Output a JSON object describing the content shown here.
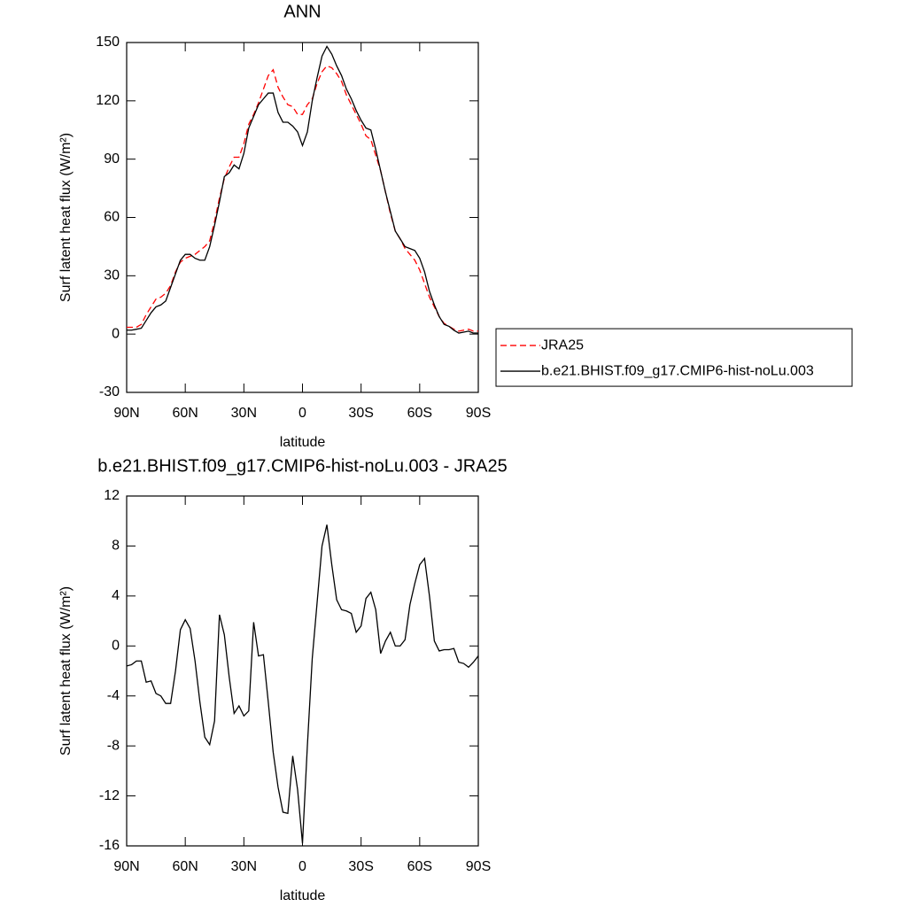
{
  "chart_data": [
    {
      "type": "line",
      "title": "ANN",
      "xlabel": "latitude",
      "ylabel": "Surf latent heat flux (W/m²)",
      "x": [
        90,
        87.5,
        85,
        82.5,
        80,
        77.5,
        75,
        72.5,
        70,
        67.5,
        65,
        62.5,
        60,
        57.5,
        55,
        52.5,
        50,
        47.5,
        45,
        42.5,
        40,
        37.5,
        35,
        32.5,
        30,
        27.5,
        25,
        22.5,
        20,
        17.5,
        15,
        12.5,
        10,
        7.5,
        5,
        2.5,
        0,
        -2.5,
        -5,
        -7.5,
        -10,
        -12.5,
        -15,
        -17.5,
        -20,
        -22.5,
        -25,
        -27.5,
        -30,
        -32.5,
        -35,
        -37.5,
        -40,
        -42.5,
        -45,
        -47.5,
        -50,
        -52.5,
        -55,
        -57.5,
        -60,
        -62.5,
        -65,
        -67.5,
        -70,
        -72.5,
        -75,
        -77.5,
        -80,
        -82.5,
        -85,
        -87.5,
        -90
      ],
      "series": [
        {
          "name": "JRA25",
          "color": "#ff0000",
          "dashed": true,
          "values": [
            3.5,
            3.5,
            3.5,
            5,
            10,
            14,
            18,
            19,
            21,
            25,
            32,
            37,
            39,
            40,
            41,
            43,
            45,
            48,
            58,
            70,
            80,
            86,
            91,
            91,
            98,
            108,
            113,
            119,
            126,
            133,
            136,
            127,
            122,
            118,
            117,
            113,
            113,
            118,
            121,
            129,
            135,
            138,
            137,
            134,
            130,
            123,
            118,
            113,
            108,
            102,
            100,
            92,
            84,
            73,
            62,
            53,
            49,
            44,
            41,
            38,
            33,
            26,
            19,
            14,
            9,
            5.5,
            4,
            2.5,
            1.5,
            2,
            2.5,
            1.5,
            1.5
          ]
        },
        {
          "name": "b.e21.BHIST.f09_g17.CMIP6-hist-noLu.003",
          "color": "#000000",
          "dashed": false,
          "values": [
            2,
            2,
            2.5,
            3,
            7,
            11,
            14,
            15,
            17,
            24,
            31,
            38,
            41,
            41,
            39,
            38,
            38,
            45,
            56,
            68,
            81,
            83,
            87,
            85,
            93,
            106,
            112,
            118,
            121,
            124,
            124,
            114,
            109,
            109,
            107,
            104,
            97,
            104,
            120,
            132,
            143,
            148,
            144,
            138,
            133,
            126,
            121,
            115,
            110,
            106,
            105,
            95,
            84,
            73,
            63,
            53,
            49,
            45,
            44,
            43,
            39,
            32,
            22,
            15,
            9,
            5,
            4,
            2,
            0.5,
            1,
            1.5,
            0.5,
            0.5
          ]
        }
      ],
      "xlim": [
        90,
        -90
      ],
      "xticks": [
        {
          "value": 90,
          "label": "90N"
        },
        {
          "value": 60,
          "label": "60N"
        },
        {
          "value": 30,
          "label": "30N"
        },
        0,
        {
          "value": -30,
          "label": "30S"
        },
        {
          "value": -60,
          "label": "60S"
        },
        {
          "value": -90,
          "label": "90S"
        }
      ],
      "ylim": [
        -30,
        150
      ],
      "yticks": [
        -30,
        0,
        30,
        60,
        90,
        120,
        150
      ],
      "legend": "right"
    },
    {
      "type": "line",
      "title": "b.e21.BHIST.f09_g17.CMIP6-hist-noLu.003 - JRA25",
      "xlabel": "latitude",
      "ylabel": "Surf latent heat flux (W/m²)",
      "x": [
        90,
        87.5,
        85,
        82.5,
        80,
        77.5,
        75,
        72.5,
        70,
        67.5,
        65,
        62.5,
        60,
        57.5,
        55,
        52.5,
        50,
        47.5,
        45,
        42.5,
        40,
        37.5,
        35,
        32.5,
        30,
        27.5,
        25,
        22.5,
        20,
        17.5,
        15,
        12.5,
        10,
        7.5,
        5,
        2.5,
        0,
        -2.5,
        -5,
        -7.5,
        -10,
        -12.5,
        -15,
        -17.5,
        -20,
        -22.5,
        -25,
        -27.5,
        -30,
        -32.5,
        -35,
        -37.5,
        -40,
        -42.5,
        -45,
        -47.5,
        -50,
        -52.5,
        -55,
        -57.5,
        -60,
        -62.5,
        -65,
        -67.5,
        -70,
        -72.5,
        -75,
        -77.5,
        -80,
        -82.5,
        -85,
        -87.5,
        -90
      ],
      "color": "#000000",
      "values": [
        -1.6,
        -1.5,
        -1.2,
        -1.2,
        -2.9,
        -2.8,
        -3.8,
        -4.0,
        -4.6,
        -4.6,
        -2.0,
        1.3,
        2.1,
        1.4,
        -1.2,
        -4.5,
        -7.3,
        -7.9,
        -6.0,
        2.5,
        0.9,
        -2.5,
        -5.4,
        -4.8,
        -5.6,
        -5.2,
        1.9,
        -0.8,
        -0.7,
        -4.5,
        -8.5,
        -11.3,
        -13.3,
        -13.4,
        -8.8,
        -11.5,
        -15.8,
        -8,
        -1,
        3.5,
        8,
        9.7,
        6.5,
        3.7,
        2.9,
        2.8,
        2.6,
        1.1,
        1.6,
        3.8,
        4.3,
        2.9,
        -0.6,
        0.4,
        1.1,
        0,
        0,
        0.5,
        3.3,
        5,
        6.5,
        7,
        4,
        0.4,
        -0.4,
        -0.3,
        -0.3,
        -0.2,
        -1.3,
        -1.4,
        -1.7,
        -1.3,
        -0.8
      ],
      "xlim": [
        90,
        -90
      ],
      "xticks": [
        {
          "value": 90,
          "label": "90N"
        },
        {
          "value": 60,
          "label": "60N"
        },
        {
          "value": 30,
          "label": "30N"
        },
        0,
        {
          "value": -30,
          "label": "30S"
        },
        {
          "value": -60,
          "label": "60S"
        },
        {
          "value": -90,
          "label": "90S"
        }
      ],
      "ylim": [
        -16,
        12
      ],
      "yticks": [
        -16,
        -12,
        -8,
        -4,
        0,
        4,
        8,
        12
      ]
    }
  ]
}
